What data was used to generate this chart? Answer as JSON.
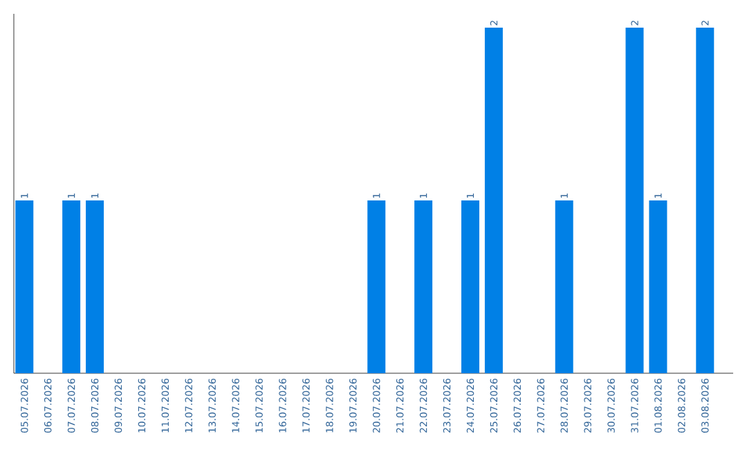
{
  "chart_data": {
    "type": "bar",
    "color": "#0080e6",
    "categories": [
      "05.07.2026",
      "06.07.2026",
      "07.07.2026",
      "08.07.2026",
      "09.07.2026",
      "10.07.2026",
      "11.07.2026",
      "12.07.2026",
      "13.07.2026",
      "14.07.2026",
      "15.07.2026",
      "16.07.2026",
      "17.07.2026",
      "18.07.2026",
      "19.07.2026",
      "20.07.2026",
      "21.07.2026",
      "22.07.2026",
      "23.07.2026",
      "24.07.2026",
      "25.07.2026",
      "26.07.2026",
      "27.07.2026",
      "28.07.2026",
      "29.07.2026",
      "30.07.2026",
      "31.07.2026",
      "01.08.2026",
      "02.08.2026",
      "03.08.2026"
    ],
    "values": [
      1,
      0,
      1,
      1,
      0,
      0,
      0,
      0,
      0,
      0,
      0,
      0,
      0,
      0,
      0,
      1,
      0,
      1,
      0,
      1,
      2,
      0,
      0,
      1,
      0,
      0,
      2,
      1,
      0,
      2
    ],
    "value_labels": [
      "1",
      null,
      "1",
      "1",
      null,
      null,
      null,
      null,
      null,
      null,
      null,
      null,
      null,
      null,
      null,
      "1",
      null,
      "1",
      null,
      "1",
      "2",
      null,
      null,
      "1",
      null,
      null,
      "2",
      "1",
      null,
      "2"
    ]
  }
}
